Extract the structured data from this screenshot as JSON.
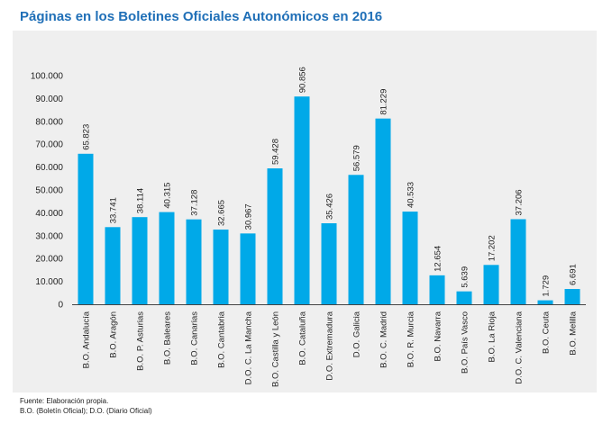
{
  "title": "Páginas en los Boletines Oficiales Autonómicos en 2016",
  "footer": {
    "source": "Fuente: Elaboración propia.",
    "note": "B.O. (Boletín Oficial); D.O. (Diario Oficial)"
  },
  "colors": {
    "bar": "#00a9e8",
    "panel": "#efefef",
    "title": "#1f6fb7",
    "axis": "#444444"
  },
  "chart_data": {
    "type": "bar",
    "title": "Páginas en los Boletines Oficiales Autonómicos en 2016",
    "xlabel": "",
    "ylabel": "",
    "ylim": [
      0,
      100000
    ],
    "yticks": [
      0,
      10000,
      20000,
      30000,
      40000,
      50000,
      60000,
      70000,
      80000,
      90000,
      100000
    ],
    "ytick_labels": [
      "0",
      "10.000",
      "20.000",
      "30.000",
      "40.000",
      "50.000",
      "60.000",
      "70.000",
      "80.000",
      "90.000",
      "100.000"
    ],
    "grid": false,
    "categories": [
      "B.O. Andalucía",
      "B.O. Aragón",
      "B.O. P. Asturias",
      "B.O. Baleares",
      "B.O. Canarias",
      "B.O. Cantabria",
      "D.O. C. La Mancha",
      "B.O. Castilla y León",
      "B.O. Cataluña",
      "D.O. Extremadura",
      "D.O. Galicia",
      "B.O. C. Madrid",
      "B.O. R. Murcia",
      "B.O. Navarra",
      "B.O. País Vasco",
      "B.O. La Rioja",
      "D.O. C. Valenciana",
      "B.O. Ceuta",
      "B.O. Melilla"
    ],
    "values": [
      65823,
      33741,
      38114,
      40315,
      37128,
      32665,
      30967,
      59428,
      90856,
      35426,
      56579,
      81229,
      40533,
      12654,
      5639,
      17202,
      37206,
      1729,
      6691
    ],
    "value_labels": [
      "65.823",
      "33.741",
      "38.114",
      "40.315",
      "37.128",
      "32.665",
      "30.967",
      "59.428",
      "90.856",
      "35.426",
      "56.579",
      "81.229",
      "40.533",
      "12.654",
      "5.639",
      "17.202",
      "37.206",
      "1.729",
      "6.691"
    ]
  }
}
